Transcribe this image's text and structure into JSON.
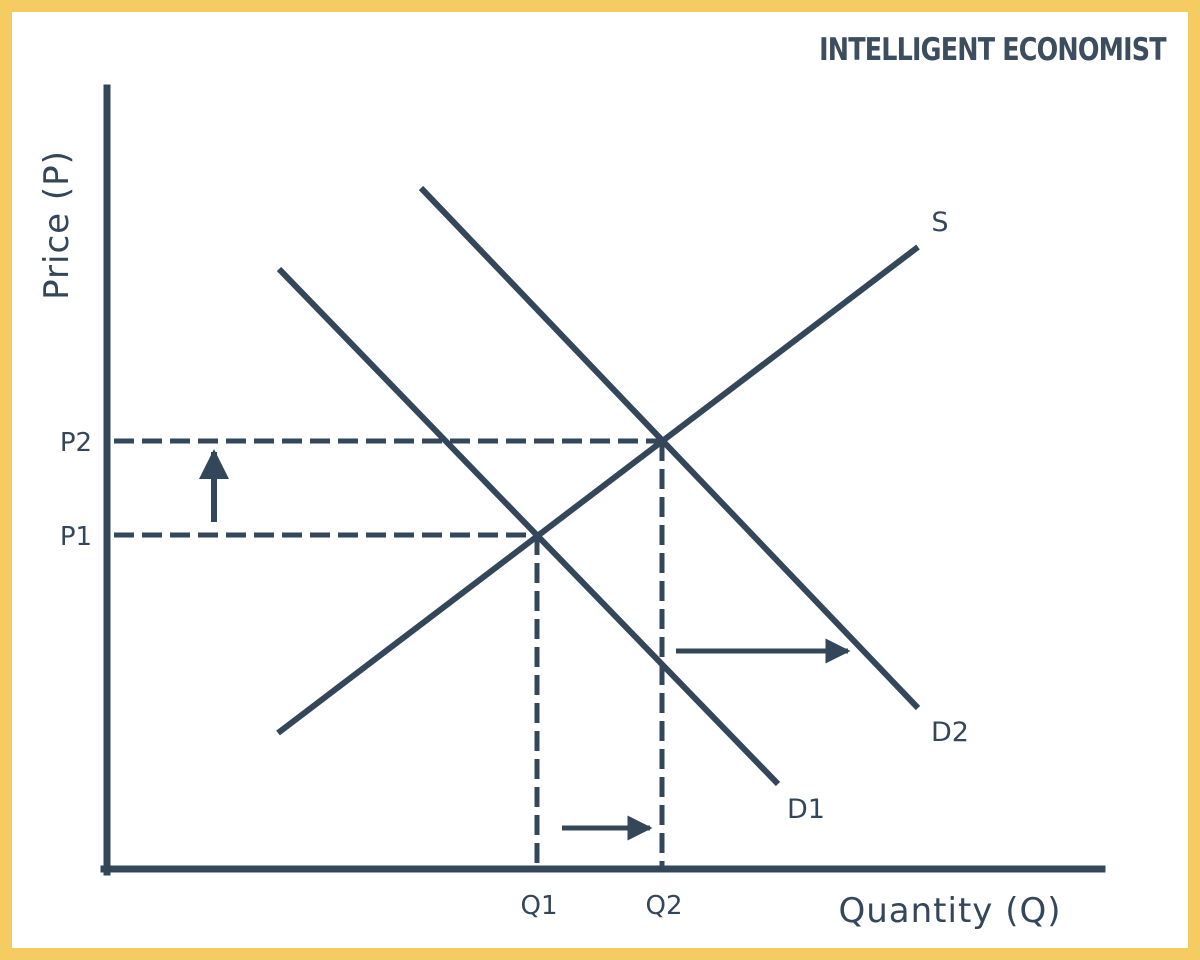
{
  "brand": "INTELLIGENT ECONOMIST",
  "axes": {
    "ylabel": "Price (P)",
    "xlabel": "Quantity (Q)"
  },
  "ticks": {
    "p1": "P1",
    "p2": "P2",
    "q1": "Q1",
    "q2": "Q2"
  },
  "curves": {
    "supply": "S",
    "demand1": "D1",
    "demand2": "D2"
  },
  "colors": {
    "line": "#34475a",
    "frame": "#f4cc61",
    "background": "#ffffff"
  }
}
